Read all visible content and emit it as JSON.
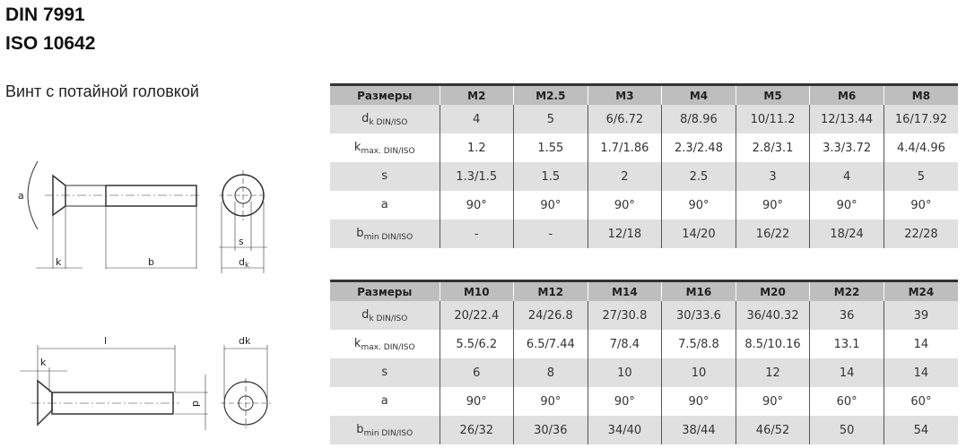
{
  "header": {
    "line1": "DIN 7991",
    "line2": "ISO 10642",
    "subtitle": "Винт с потайной головкой"
  },
  "drawing": {
    "labels": {
      "a": "a",
      "k": "k",
      "b": "b",
      "s": "s",
      "dk": "d",
      "dk_sub": "k",
      "l": "l",
      "k2": "k",
      "dk2": "dk",
      "d": "d"
    }
  },
  "tables": [
    {
      "header": [
        "Размеры",
        "M2",
        "M2.5",
        "M3",
        "M4",
        "M5",
        "M6",
        "M8"
      ],
      "rows": [
        {
          "label": "d",
          "sub": "k DIN/ISO",
          "values": [
            "4",
            "5",
            "6/6.72",
            "8/8.96",
            "10/11.2",
            "12/13.44",
            "16/17.92"
          ]
        },
        {
          "label": "k",
          "sub": "max. DIN/ISO",
          "values": [
            "1.2",
            "1.55",
            "1.7/1.86",
            "2.3/2.48",
            "2.8/3.1",
            "3.3/3.72",
            "4.4/4.96"
          ]
        },
        {
          "label": "s",
          "sub": "",
          "values": [
            "1.3/1.5",
            "1.5",
            "2",
            "2.5",
            "3",
            "4",
            "5"
          ]
        },
        {
          "label": "a",
          "sub": "",
          "values": [
            "90°",
            "90°",
            "90°",
            "90°",
            "90°",
            "90°",
            "90°"
          ]
        },
        {
          "label": "b",
          "sub": "min DIN/ISO",
          "values": [
            "-",
            "-",
            "12/18",
            "14/20",
            "16/22",
            "18/24",
            "22/28"
          ]
        }
      ]
    },
    {
      "header": [
        "Размеры",
        "M10",
        "M12",
        "M14",
        "M16",
        "M20",
        "M22",
        "M24"
      ],
      "rows": [
        {
          "label": "d",
          "sub": "k DIN/ISO",
          "values": [
            "20/22.4",
            "24/26.8",
            "27/30.8",
            "30/33.6",
            "36/40.32",
            "36",
            "39"
          ]
        },
        {
          "label": "k",
          "sub": "max. DIN/ISO",
          "values": [
            "5.5/6.2",
            "6.5/7.44",
            "7/8.4",
            "7.5/8.8",
            "8.5/10.16",
            "13.1",
            "14"
          ]
        },
        {
          "label": "s",
          "sub": "",
          "values": [
            "6",
            "8",
            "10",
            "10",
            "12",
            "14",
            "14"
          ]
        },
        {
          "label": "a",
          "sub": "",
          "values": [
            "90°",
            "90°",
            "90°",
            "90°",
            "90°",
            "60°",
            "60°"
          ]
        },
        {
          "label": "b",
          "sub": "min DIN/ISO",
          "values": [
            "26/32",
            "30/36",
            "34/40",
            "38/44",
            "46/52",
            "50",
            "54"
          ]
        }
      ]
    }
  ]
}
